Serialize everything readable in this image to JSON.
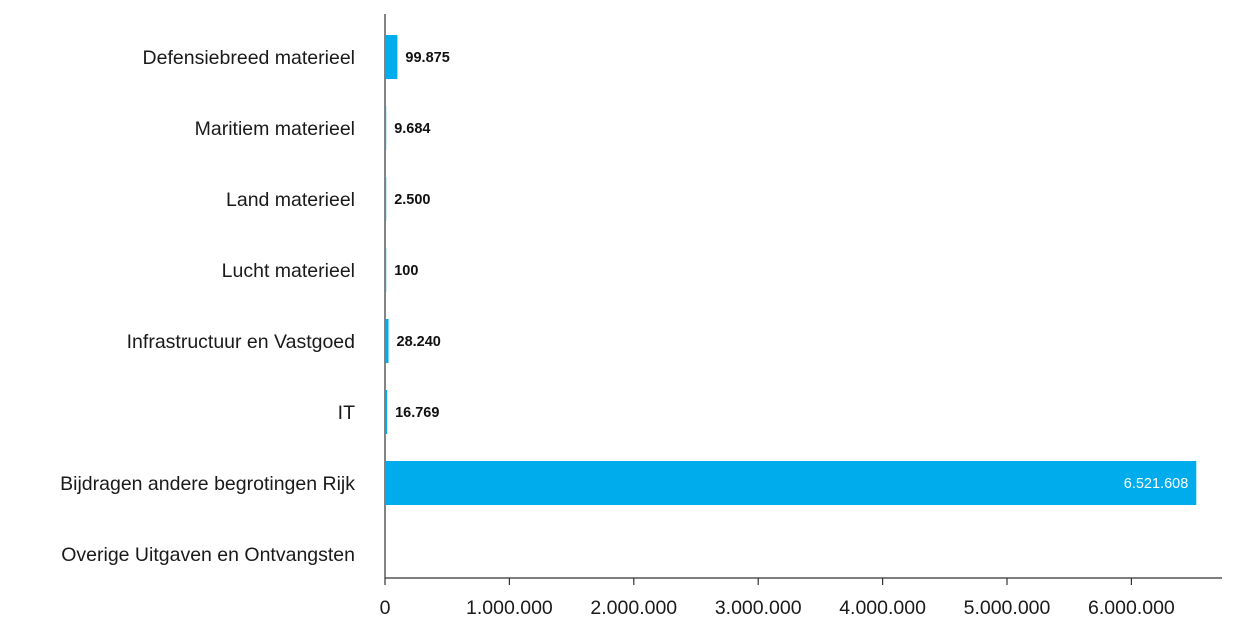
{
  "chart_data": {
    "type": "bar",
    "orientation": "horizontal",
    "categories": [
      "Defensiebreed materieel",
      "Maritiem materieel",
      "Land materieel",
      "Lucht materieel",
      "Infrastructuur en Vastgoed",
      "IT",
      "Bijdragen andere begrotingen Rijk",
      "Overige Uitgaven en Ontvangsten"
    ],
    "values": [
      99875,
      9684,
      2500,
      100,
      28240,
      16769,
      6521608,
      null
    ],
    "data_labels": [
      "99.875",
      "9.684",
      "2.500",
      "100",
      "28.240",
      "16.769",
      "6.521.608",
      ""
    ],
    "x_ticks": [
      0,
      1000000,
      2000000,
      3000000,
      4000000,
      5000000,
      6000000
    ],
    "x_tick_labels": [
      "0",
      "1.000.000",
      "2.000.000",
      "3.000.000",
      "4.000.000",
      "5.000.000",
      "6.000.000"
    ],
    "xlim": [
      0,
      6800000
    ],
    "title": "",
    "xlabel": "",
    "ylabel": "",
    "grid": false,
    "legend": "none",
    "bar_color": "#00acec",
    "axis_color": "#333333"
  }
}
